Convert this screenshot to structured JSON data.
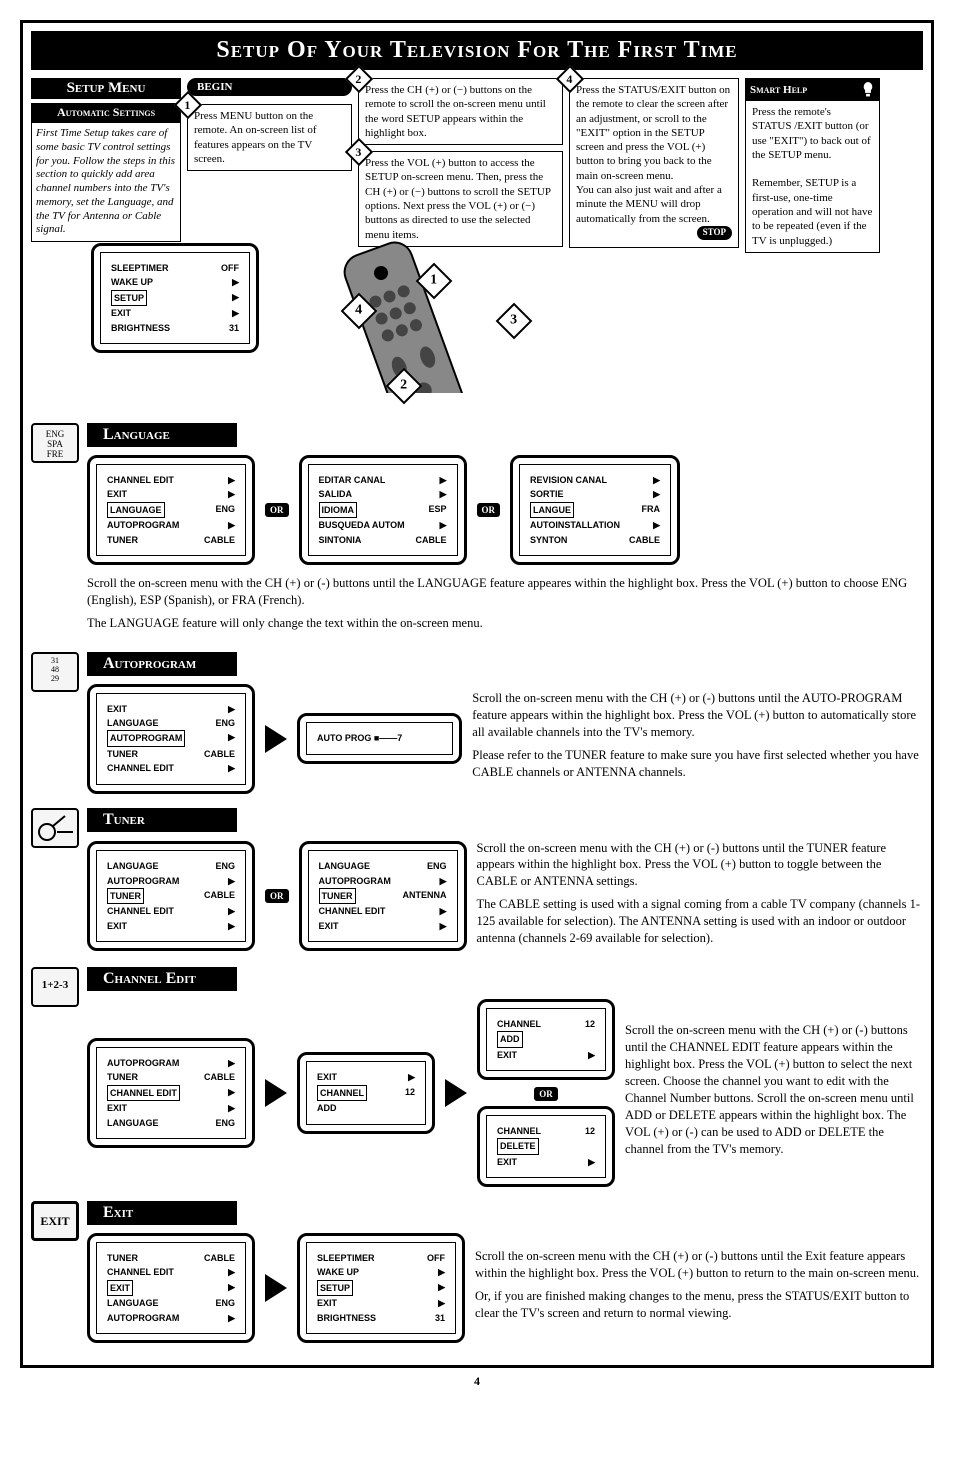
{
  "page_title": "Setup Of Your Television For The First Time",
  "page_number": "4",
  "setup_menu_label": "Setup Menu",
  "begin_label": "BEGIN",
  "auto_settings": {
    "title": "Automatic Settings",
    "body": "First Time Setup takes care of some basic TV control settings for you. Follow the steps in this section to quickly add area channel numbers into the TV's memory, set the Language, and the TV for Antenna or Cable signal."
  },
  "steps": {
    "s1": "Press MENU button on the remote. An on-screen list of features appears on the TV screen.",
    "s2": "Press the CH (+) or (−) buttons on the remote to scroll the on-screen menu until the word SETUP appears within the highlight box.",
    "s3": "Press the VOL (+) button to access the SETUP on-screen menu. Then, press the CH (+) or (−) buttons to scroll the SETUP options. Next press the VOL (+) or (−) buttons as directed to use the selected menu items.",
    "s4": "Press the STATUS/EXIT button on the remote to clear the screen after an adjustment, or scroll to the \"EXIT\" option in the SETUP screen and press the VOL (+) button to bring you back to the main on-screen menu.\nYou can also just wait and after a minute the MENU will drop automatically from the screen.",
    "stop": "STOP"
  },
  "smart_help": {
    "title": "Smart Help",
    "body": "Press the remote's STATUS /EXIT button (or use \"EXIT\") to back out of the SETUP menu.\n\nRemember, SETUP is a first-use, one-time operation and will not have to be repeated (even if the TV is unplugged.)"
  },
  "osd_main": {
    "rows": [
      {
        "k": "SLEEPTIMER",
        "v": "OFF"
      },
      {
        "k": "WAKE UP",
        "v": "▶"
      },
      {
        "k": "SETUP",
        "v": "▶",
        "sel": true
      },
      {
        "k": "EXIT",
        "v": "▶"
      },
      {
        "k": "BRIGHTNESS",
        "v": "31"
      }
    ]
  },
  "language": {
    "title": "Language",
    "desc1": "Scroll the on-screen menu with the CH (+) or (-) buttons until the LANGUAGE feature appeares within the highlight box. Press the VOL (+) button to choose ENG (English), ESP (Spanish), or FRA (French).",
    "desc2": "The LANGUAGE feature will only change the text within the on-screen menu.",
    "osd_en": [
      {
        "k": "CHANNEL EDIT",
        "v": "▶"
      },
      {
        "k": "EXIT",
        "v": "▶"
      },
      {
        "k": "LANGUAGE",
        "v": "ENG",
        "sel": true
      },
      {
        "k": "AUTOPROGRAM",
        "v": "▶"
      },
      {
        "k": "TUNER",
        "v": "CABLE"
      }
    ],
    "osd_es": [
      {
        "k": "EDITAR CANAL",
        "v": "▶"
      },
      {
        "k": "SALIDA",
        "v": "▶"
      },
      {
        "k": "IDIOMA",
        "v": "ESP",
        "sel": true
      },
      {
        "k": "BUSQUEDA AUTOM",
        "v": "▶"
      },
      {
        "k": "SINTONIA",
        "v": "CABLE"
      }
    ],
    "osd_fr": [
      {
        "k": "REVISION CANAL",
        "v": "▶"
      },
      {
        "k": "SORTIE",
        "v": "▶"
      },
      {
        "k": "LANGUE",
        "v": "FRA",
        "sel": true
      },
      {
        "k": "AUTOINSTALLATION",
        "v": "▶"
      },
      {
        "k": "SYNTON",
        "v": "CABLE"
      }
    ]
  },
  "autoprogram": {
    "title": "Autoprogram",
    "desc1": "Scroll the on-screen menu with the CH (+) or (-) buttons until the AUTO-PROGRAM feature appears within the highlight box. Press the VOL (+) button to automatically store all available channels into the TV's memory.",
    "desc2": "Please refer to the TUNER feature to make sure you have first selected whether you have CABLE channels or ANTENNA channels.",
    "osd1": [
      {
        "k": "EXIT",
        "v": "▶"
      },
      {
        "k": "LANGUAGE",
        "v": "ENG"
      },
      {
        "k": "AUTOPROGRAM",
        "v": "▶",
        "sel": true
      },
      {
        "k": "TUNER",
        "v": "CABLE"
      },
      {
        "k": "CHANNEL EDIT",
        "v": "▶"
      }
    ],
    "osd2": [
      {
        "k": "AUTO PROG ■——7",
        "v": ""
      }
    ]
  },
  "tuner": {
    "title": "Tuner",
    "desc1": "Scroll the on-screen menu with the CH (+) or (-) buttons until the TUNER feature appears within the highlight box. Press the VOL (+) button to toggle between the CABLE or ANTENNA settings.",
    "desc2": "The CABLE setting is used with a signal coming from a cable TV company (channels 1-125 available for selection). The ANTENNA setting is used with an indoor or outdoor antenna (channels 2-69 available for selection).",
    "osd1": [
      {
        "k": "LANGUAGE",
        "v": "ENG"
      },
      {
        "k": "AUTOPROGRAM",
        "v": "▶"
      },
      {
        "k": "TUNER",
        "v": "CABLE",
        "sel": true
      },
      {
        "k": "CHANNEL EDIT",
        "v": "▶"
      },
      {
        "k": "EXIT",
        "v": "▶"
      }
    ],
    "osd2": [
      {
        "k": "LANGUAGE",
        "v": "ENG"
      },
      {
        "k": "AUTOPROGRAM",
        "v": "▶"
      },
      {
        "k": "TUNER",
        "v": "ANTENNA",
        "sel": true
      },
      {
        "k": "CHANNEL EDIT",
        "v": "▶"
      },
      {
        "k": "EXIT",
        "v": "▶"
      }
    ]
  },
  "channel_edit": {
    "title": "Channel Edit",
    "icon_text": "1+2-3",
    "desc": "Scroll the on-screen menu with the CH (+) or (-) buttons until the CHANNEL EDIT feature appears within the highlight box. Press the VOL (+) button to select the next screen. Choose the channel you want to edit with the Channel Number buttons. Scroll the on-screen menu until ADD or DELETE appears within the highlight box. The VOL (+) or (-) can be used to ADD or DELETE the channel from the TV's memory.",
    "osd1": [
      {
        "k": "AUTOPROGRAM",
        "v": "▶"
      },
      {
        "k": "TUNER",
        "v": "CABLE"
      },
      {
        "k": "CHANNEL EDIT",
        "v": "▶",
        "sel": true
      },
      {
        "k": "EXIT",
        "v": "▶"
      },
      {
        "k": "LANGUAGE",
        "v": "ENG"
      }
    ],
    "osd2": [
      {
        "k": "EXIT",
        "v": "▶"
      },
      {
        "k": "CHANNEL",
        "v": "12",
        "sel": true
      },
      {
        "k": "ADD",
        "v": ""
      }
    ],
    "osd3a": [
      {
        "k": "CHANNEL",
        "v": "12"
      },
      {
        "k": "ADD",
        "v": "",
        "sel": true
      },
      {
        "k": "EXIT",
        "v": "▶"
      }
    ],
    "osd3b": [
      {
        "k": "CHANNEL",
        "v": "12"
      },
      {
        "k": "DELETE",
        "v": "",
        "sel": true
      },
      {
        "k": "EXIT",
        "v": "▶"
      }
    ]
  },
  "exit": {
    "title": "Exit",
    "icon_text": "EXIT",
    "desc1": "Scroll the on-screen menu with the CH (+) or (-) buttons until the Exit feature appears within the highlight box. Press the VOL (+) button to return to the main on-screen menu.",
    "desc2": "Or, if you are finished making changes to the menu, press the STATUS/EXIT button to clear the TV's screen and return to normal viewing.",
    "osd1": [
      {
        "k": "TUNER",
        "v": "CABLE"
      },
      {
        "k": "CHANNEL EDIT",
        "v": "▶"
      },
      {
        "k": "EXIT",
        "v": "▶",
        "sel": true
      },
      {
        "k": "LANGUAGE",
        "v": "ENG"
      },
      {
        "k": "AUTOPROGRAM",
        "v": "▶"
      }
    ],
    "osd2": [
      {
        "k": "SLEEPTIMER",
        "v": "OFF"
      },
      {
        "k": "WAKE UP",
        "v": "▶"
      },
      {
        "k": "SETUP",
        "v": "▶",
        "sel": true
      },
      {
        "k": "EXIT",
        "v": "▶"
      },
      {
        "k": "BRIGHTNESS",
        "v": "31"
      }
    ]
  },
  "or_label": "OR",
  "colors": {
    "black": "#000000",
    "white": "#ffffff"
  }
}
